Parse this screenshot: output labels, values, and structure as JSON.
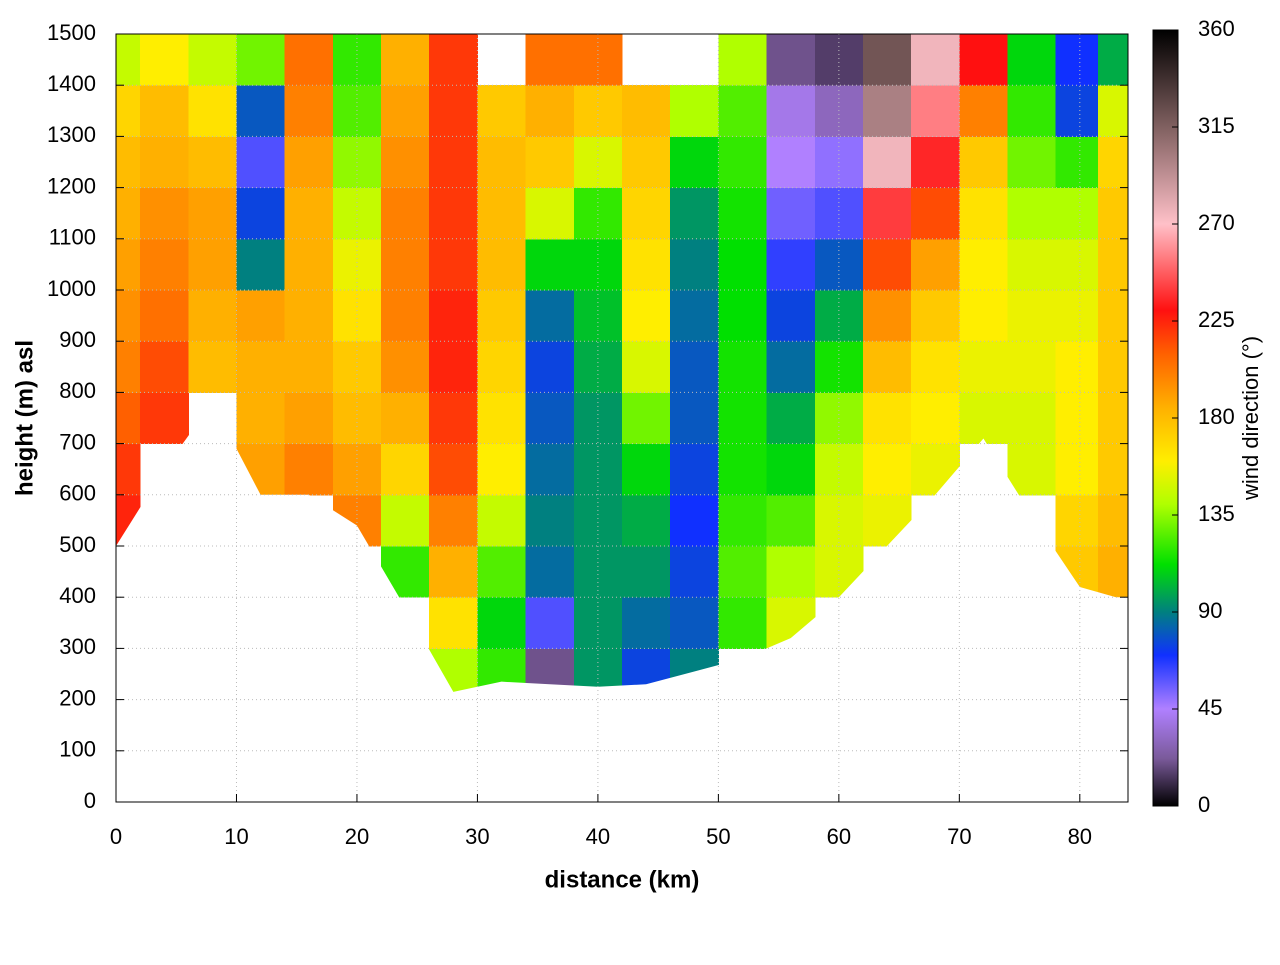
{
  "chart_data": {
    "type": "heatmap",
    "x_label": "distance (km)",
    "y_label": "height (m) asl",
    "colorbar_label": "wind direction (°)",
    "x": [
      0,
      4,
      8,
      12,
      16,
      20,
      24,
      28,
      32,
      36,
      40,
      44,
      48,
      52,
      56,
      60,
      64,
      68,
      72,
      76,
      80,
      83
    ],
    "y": [
      250,
      350,
      450,
      550,
      650,
      750,
      850,
      950,
      1050,
      1150,
      1250,
      1350,
      1450
    ],
    "ground": [
      500,
      650,
      780,
      600,
      600,
      540,
      380,
      215,
      235,
      230,
      225,
      230,
      255,
      280,
      320,
      400,
      500,
      600,
      710,
      560,
      420,
      400
    ],
    "values": [
      [
        null,
        null,
        null,
        225,
        220,
        210,
        200,
        195,
        190,
        185,
        180,
        170,
        145
      ],
      [
        null,
        null,
        null,
        null,
        null,
        220,
        215,
        205,
        200,
        195,
        185,
        180,
        160
      ],
      [
        null,
        null,
        null,
        null,
        null,
        null,
        180,
        185,
        190,
        190,
        180,
        165,
        145
      ],
      [
        null,
        null,
        null,
        null,
        190,
        185,
        185,
        190,
        90,
        75,
        60,
        80,
        130
      ],
      [
        null,
        null,
        null,
        null,
        200,
        190,
        185,
        185,
        185,
        185,
        190,
        200,
        205
      ],
      [
        null,
        null,
        null,
        200,
        190,
        180,
        175,
        165,
        155,
        145,
        135,
        125,
        120
      ],
      [
        null,
        null,
        120,
        145,
        170,
        185,
        195,
        200,
        200,
        200,
        195,
        190,
        185
      ],
      [
        140,
        165,
        185,
        200,
        215,
        220,
        225,
        225,
        220,
        220,
        220,
        220,
        220
      ],
      [
        120,
        110,
        125,
        145,
        160,
        165,
        170,
        175,
        180,
        180,
        180,
        175,
        null
      ],
      [
        20,
        60,
        85,
        90,
        85,
        80,
        75,
        85,
        110,
        150,
        175,
        185,
        205
      ],
      [
        95,
        95,
        95,
        95,
        95,
        95,
        100,
        105,
        110,
        120,
        150,
        175,
        205
      ],
      [
        75,
        85,
        95,
        100,
        110,
        130,
        150,
        160,
        165,
        170,
        175,
        180,
        null
      ],
      [
        90,
        80,
        75,
        70,
        75,
        80,
        80,
        85,
        90,
        95,
        110,
        140,
        null
      ],
      [
        null,
        120,
        125,
        120,
        115,
        115,
        115,
        112,
        112,
        115,
        120,
        125,
        140
      ],
      [
        null,
        150,
        140,
        125,
        110,
        100,
        85,
        75,
        65,
        55,
        45,
        40,
        20
      ],
      [
        null,
        null,
        150,
        150,
        145,
        135,
        115,
        100,
        80,
        60,
        50,
        30,
        15
      ],
      [
        null,
        null,
        null,
        155,
        160,
        165,
        180,
        195,
        215,
        240,
        275,
        300,
        320
      ],
      [
        null,
        null,
        null,
        null,
        155,
        160,
        165,
        175,
        190,
        215,
        235,
        255,
        275
      ],
      [
        null,
        null,
        null,
        null,
        null,
        150,
        155,
        160,
        160,
        165,
        175,
        200,
        230
      ],
      [
        null,
        null,
        null,
        null,
        150,
        150,
        155,
        155,
        150,
        140,
        130,
        120,
        110
      ],
      [
        null,
        null,
        175,
        170,
        160,
        160,
        160,
        155,
        150,
        140,
        120,
        75,
        70
      ],
      [
        null,
        null,
        185,
        180,
        175,
        175,
        175,
        175,
        175,
        175,
        170,
        150,
        100
      ]
    ],
    "xlim": [
      0,
      84
    ],
    "ylim": [
      0,
      1500
    ],
    "xticks": [
      0,
      10,
      20,
      30,
      40,
      50,
      60,
      70,
      80
    ],
    "yticks": [
      0,
      100,
      200,
      300,
      400,
      500,
      600,
      700,
      800,
      900,
      1000,
      1100,
      1200,
      1300,
      1400,
      1500
    ],
    "clim": [
      0,
      360
    ],
    "cticks": [
      0,
      45,
      90,
      135,
      180,
      225,
      270,
      315,
      360
    ],
    "colorscale": [
      [
        0,
        "#000000"
      ],
      [
        22,
        "#7a5a9a"
      ],
      [
        45,
        "#b080ff"
      ],
      [
        70,
        "#1030ff"
      ],
      [
        90,
        "#008080"
      ],
      [
        112,
        "#00e000"
      ],
      [
        140,
        "#b0ff00"
      ],
      [
        160,
        "#ffee00"
      ],
      [
        185,
        "#ffb000"
      ],
      [
        210,
        "#ff6000"
      ],
      [
        230,
        "#ff1010"
      ],
      [
        270,
        "#ffc0c8"
      ],
      [
        315,
        "#806060"
      ],
      [
        360,
        "#000000"
      ]
    ],
    "grid": true
  }
}
